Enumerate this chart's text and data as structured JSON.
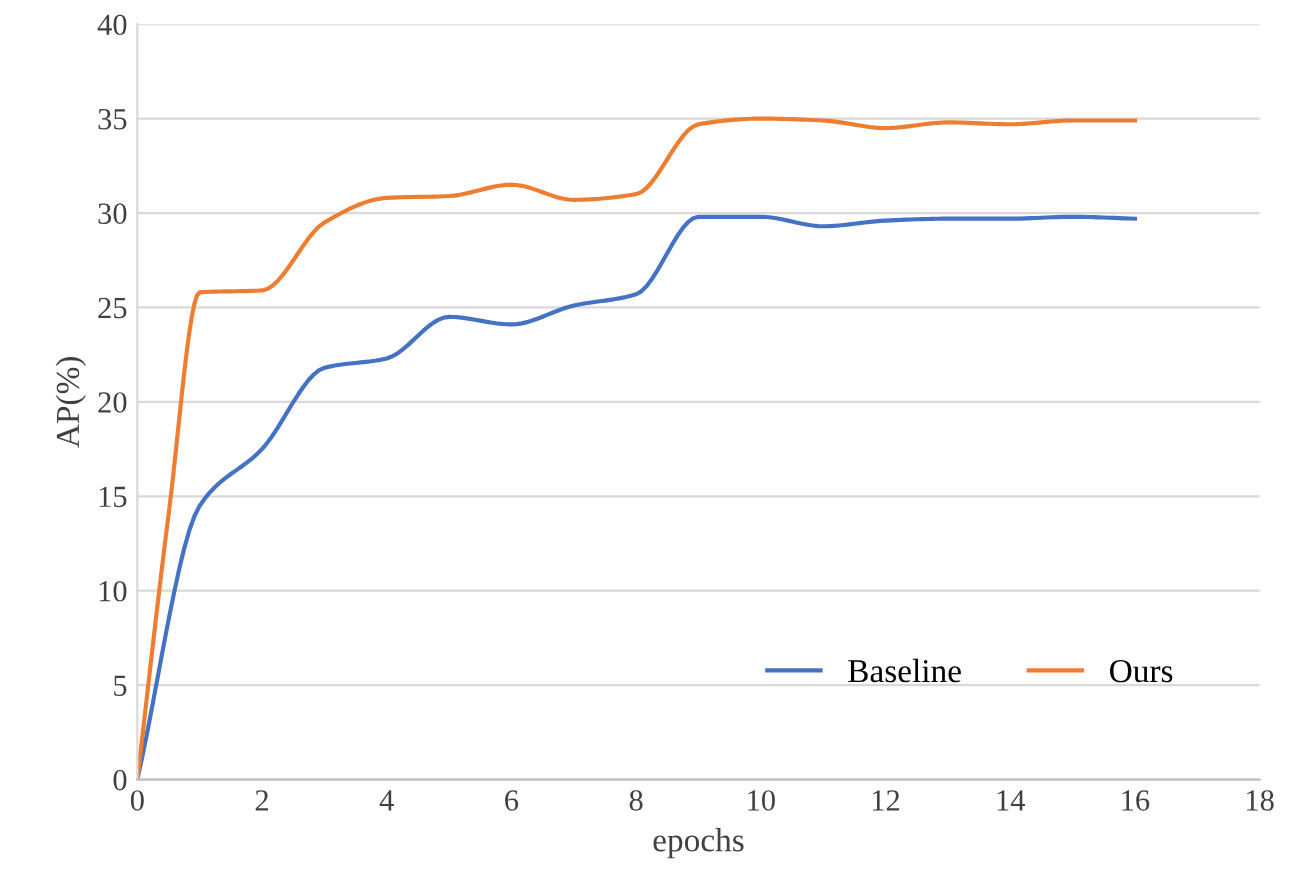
{
  "chart_data": {
    "type": "line",
    "xlabel": "epochs",
    "ylabel": "AP(%)",
    "x": [
      0,
      1,
      2,
      3,
      4,
      5,
      6,
      7,
      8,
      9,
      10,
      11,
      12,
      13,
      14,
      15,
      16
    ],
    "series": [
      {
        "name": "Baseline",
        "color": "#4472c4",
        "values": [
          0,
          14.5,
          17.5,
          21.8,
          22.3,
          24.5,
          24.1,
          25.1,
          25.7,
          29.8,
          29.8,
          29.3,
          29.6,
          29.7,
          29.7,
          29.8,
          29.7
        ]
      },
      {
        "name": "Ours",
        "color": "#ed7d31",
        "x": [
          0,
          0.5,
          1,
          2,
          3,
          4,
          5,
          6,
          7,
          8,
          9,
          10,
          11,
          12,
          13,
          14,
          15,
          16
        ],
        "values": [
          0,
          14,
          25.8,
          25.9,
          29.5,
          30.8,
          30.9,
          31.5,
          30.7,
          31.0,
          34.7,
          35.0,
          34.9,
          34.5,
          34.8,
          34.7,
          34.9,
          34.9
        ]
      }
    ],
    "xlim": [
      0,
      18
    ],
    "xticks": [
      0,
      2,
      4,
      6,
      8,
      10,
      12,
      14,
      16,
      18
    ],
    "ylim": [
      0,
      40
    ],
    "yticks": [
      0,
      5,
      10,
      15,
      20,
      25,
      30,
      35,
      40
    ],
    "grid": "y",
    "legend": "bottom right",
    "marker": "none",
    "line_style": "solid"
  }
}
